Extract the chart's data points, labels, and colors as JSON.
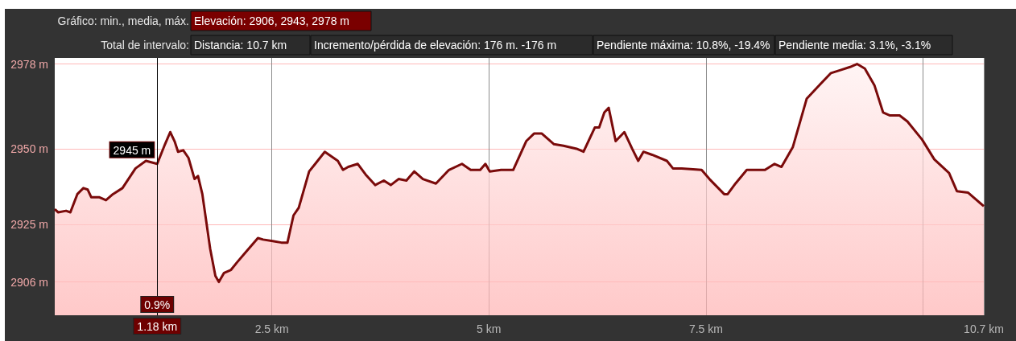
{
  "chart_data": {
    "type": "area",
    "x": [
      0,
      0.04,
      0.13,
      0.18,
      0.26,
      0.33,
      0.38,
      0.42,
      0.51,
      0.59,
      0.67,
      0.78,
      0.93,
      1.05,
      1.18,
      1.27,
      1.33,
      1.38,
      1.42,
      1.48,
      1.54,
      1.61,
      1.65,
      1.7,
      1.79,
      1.85,
      1.89,
      1.95,
      2.03,
      2.1,
      2.19,
      2.28,
      2.34,
      2.4,
      2.51,
      2.61,
      2.68,
      2.75,
      2.81,
      2.93,
      3.0,
      3.11,
      3.26,
      3.32,
      3.38,
      3.49,
      3.58,
      3.69,
      3.79,
      3.87,
      3.96,
      4.05,
      4.14,
      4.24,
      4.39,
      4.54,
      4.69,
      4.79,
      4.9,
      4.96,
      5.01,
      5.14,
      5.28,
      5.43,
      5.52,
      5.61,
      5.75,
      5.86,
      6.01,
      6.09,
      6.22,
      6.27,
      6.33,
      6.38,
      6.46,
      6.56,
      6.65,
      6.72,
      6.78,
      6.88,
      7.05,
      7.12,
      7.22,
      7.45,
      7.54,
      7.71,
      7.75,
      7.84,
      7.97,
      8.18,
      8.29,
      8.37,
      8.5,
      8.66,
      8.79,
      8.94,
      9.05,
      9.16,
      9.24,
      9.33,
      9.44,
      9.54,
      9.62,
      9.73,
      9.82,
      9.99,
      10.13,
      10.3,
      10.39,
      10.52,
      10.7
    ],
    "series": [
      {
        "color": "#7a0a0a",
        "values": [
          2930,
          2929,
          2929.5,
          2929,
          2935,
          2937,
          2936.5,
          2934,
          2934,
          2933,
          2935,
          2937,
          2943.5,
          2946,
          2945,
          2951.5,
          2955.5,
          2952.5,
          2949,
          2949.5,
          2947,
          2940,
          2941,
          2935,
          2917,
          2908,
          2906,
          2909,
          2910,
          2912.5,
          2915.5,
          2918.5,
          2920.5,
          2920,
          2919.5,
          2919,
          2919,
          2928,
          2930.5,
          2942.5,
          2945,
          2949,
          2946,
          2943,
          2944,
          2945,
          2941.5,
          2938,
          2939.5,
          2938,
          2940,
          2939.5,
          2942.5,
          2940,
          2938.5,
          2943,
          2945,
          2943,
          2943,
          2945,
          2942.5,
          2943,
          2943,
          2952.5,
          2955,
          2955,
          2951.5,
          2951,
          2950,
          2949,
          2957,
          2957,
          2962,
          2963.5,
          2952.5,
          2955.5,
          2950,
          2946,
          2949,
          2948,
          2946,
          2943.5,
          2943.5,
          2943,
          2940,
          2935,
          2935,
          2938.5,
          2943,
          2943,
          2945,
          2944,
          2950.5,
          2966.5,
          2970.5,
          2975,
          2976,
          2977,
          2978,
          2976.5,
          2971,
          2962,
          2961,
          2961,
          2959,
          2953,
          2946.5,
          2942,
          2936,
          2935.5,
          2931
        ]
      }
    ],
    "xlim": [
      0,
      10.7
    ],
    "xticks": [
      {
        "value": 2.5,
        "label": "2.5 km"
      },
      {
        "value": 5,
        "label": "5 km"
      },
      {
        "value": 7.5,
        "label": "7.5 km"
      },
      {
        "value": 10,
        "label": null
      },
      {
        "value": 10.7,
        "label": "10.7 km"
      }
    ],
    "ylim": [
      2895,
      2980
    ],
    "yticks": [
      {
        "value": 2906,
        "label": "2906 m"
      },
      {
        "value": 2925,
        "label": "2925 m"
      },
      {
        "value": 2950,
        "label": "2950 m"
      },
      {
        "value": 2978,
        "label": "2978 m"
      }
    ],
    "grid": true,
    "ref_lines": [
      {
        "axis": "x",
        "value": 1.18,
        "label": "1.18 km",
        "color": "#000000"
      }
    ],
    "annotations": [
      "Gráfico: min., media, máx.",
      "Elevación: 2906, 2943, 2978 m",
      "Total de intervalo:",
      "Distancia: 10.7 km",
      "Incremento/pérdida de elevación: 176 m. -176 m",
      "Pendiente máxima: 10.8%, -19.4%",
      "Pendiente media: 3.1%, -3.1%",
      {
        "text": "2945 m",
        "x": 1.18,
        "y": 2945
      },
      {
        "text": "0.9%",
        "x": 1.18
      }
    ]
  }
}
